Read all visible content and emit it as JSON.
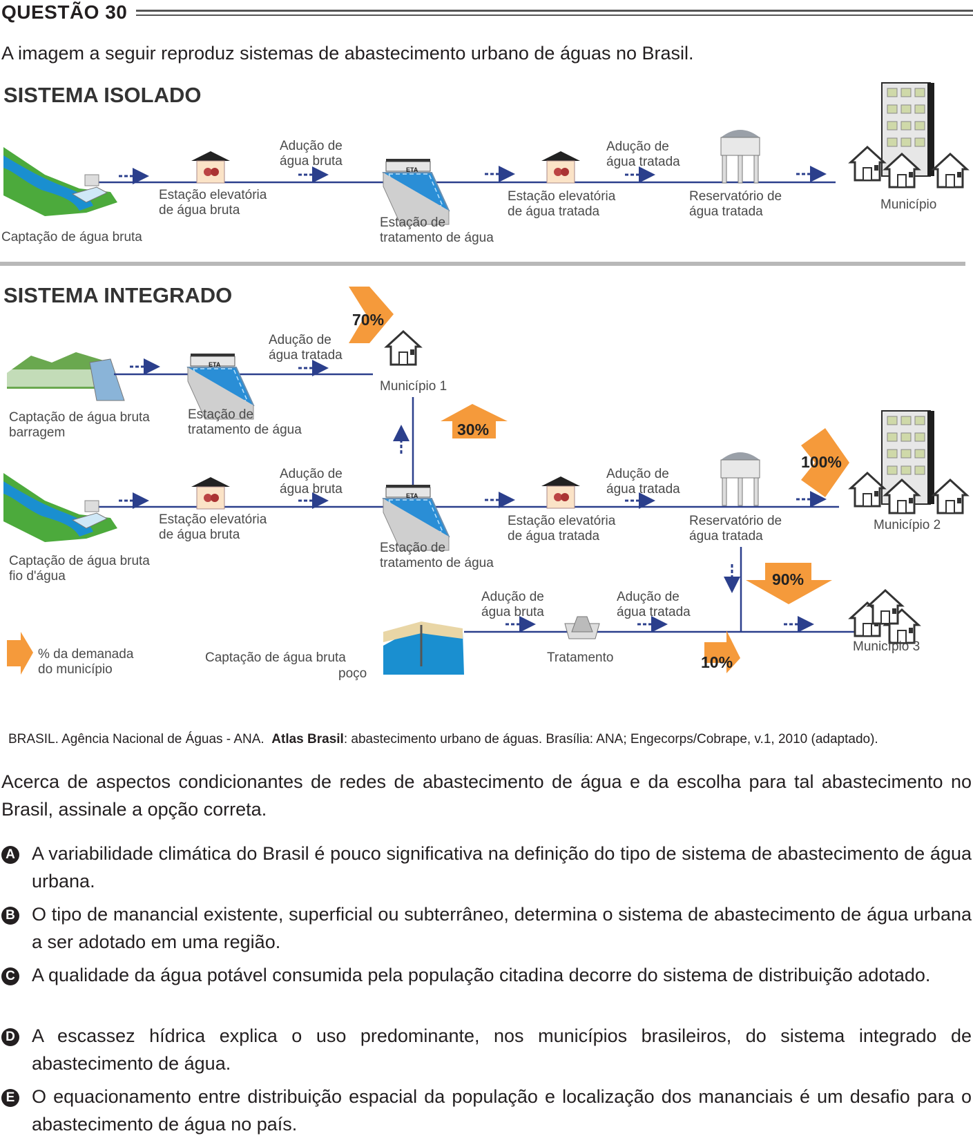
{
  "header": {
    "question": "QUESTÃO 30"
  },
  "intro": "A imagem a seguir reproduz sistemas de abastecimento urbano de águas no Brasil.",
  "figure": {
    "isolado": {
      "title": "SISTEMA ISOLADO",
      "captacao": "Captação de água bruta",
      "elev_bruta": [
        "Estação elevatória",
        "de água bruta"
      ],
      "aducao_bruta": [
        "Adução de",
        "água bruta"
      ],
      "eta_label": [
        "Estação de",
        "tratamento de água"
      ],
      "eta_tag": "ETA",
      "elev_tratada": [
        "Estação elevatória",
        "de água tratada"
      ],
      "aducao_tratada": [
        "Adução de",
        "água tratada"
      ],
      "reservatorio": [
        "Reservatório de",
        "água tratada"
      ],
      "municipio": "Município"
    },
    "integrado": {
      "title": "SISTEMA INTEGRADO",
      "captacao_barragem": [
        "Captação de água bruta",
        "barragem"
      ],
      "eta_label": [
        "Estação de",
        "tratamento de água"
      ],
      "eta_tag": "ETA",
      "aducao_tratada": [
        "Adução de",
        "água tratada"
      ],
      "municipio1": "Município 1",
      "pct_70": "70%",
      "pct_30": "30%",
      "captacao_fio": [
        "Captação de água bruta",
        "fio d'água"
      ],
      "elev_bruta": [
        "Estação elevatória",
        "de água bruta"
      ],
      "aducao_bruta": [
        "Adução de",
        "água bruta"
      ],
      "eta2_label": [
        "Estação de",
        "tratamento de água"
      ],
      "elev_tratada": [
        "Estação elevatória",
        "de água tratada"
      ],
      "aducao_tratada2": [
        "Adução de",
        "água tratada"
      ],
      "reservatorio": [
        "Reservatório de",
        "água tratada"
      ],
      "municipio2": "Município 2",
      "pct_100": "100%",
      "pct_90": "90%",
      "aducao_bruta3": [
        "Adução de",
        "água bruta"
      ],
      "aducao_tratada3": [
        "Adução de",
        "água tratada"
      ],
      "captacao_poco": [
        "Captação de água bruta",
        "poço"
      ],
      "tratamento": "Tratamento",
      "pct_10": "10%",
      "municipio3": "Município 3",
      "legend": [
        "% da demanada",
        "do município"
      ]
    },
    "colors": {
      "pipe": "#2b3f8c",
      "arrow": "#f59a3b",
      "water": "#1a8fd0",
      "grass": "#4caa3c",
      "building": "#3a3a3a"
    }
  },
  "caption": {
    "part1": "BRASIL. Agência Nacional de Águas - ANA.",
    "bold": "Atlas Brasil",
    "part2": ": abastecimento urbano de águas. Brasília: ANA; Engecorps/Cobrape, v.1, 2010 (adaptado)."
  },
  "stem": "Acerca de aspectos condicionantes de redes de abastecimento de água e da escolha para tal abastecimento no Brasil, assinale a opção correta.",
  "options": [
    {
      "letter": "A",
      "text": "A variabilidade climática do Brasil é pouco significativa na definição do tipo de sistema de abastecimento de água urbana."
    },
    {
      "letter": "B",
      "text": "O tipo de manancial existente, superficial ou subterrâneo, determina o sistema de abastecimento de água urbana a ser adotado em uma região."
    },
    {
      "letter": "C",
      "text": "A qualidade da água potável consumida pela população citadina decorre do sistema de distribuição adotado."
    },
    {
      "letter": "D",
      "text": "A escassez hídrica explica o uso predominante, nos municípios brasileiros, do sistema integrado de abastecimento de água."
    },
    {
      "letter": "E",
      "text": "O equacionamento entre distribuição espacial da população e localização dos mananciais é um desafio para o abastecimento de água no país."
    }
  ]
}
